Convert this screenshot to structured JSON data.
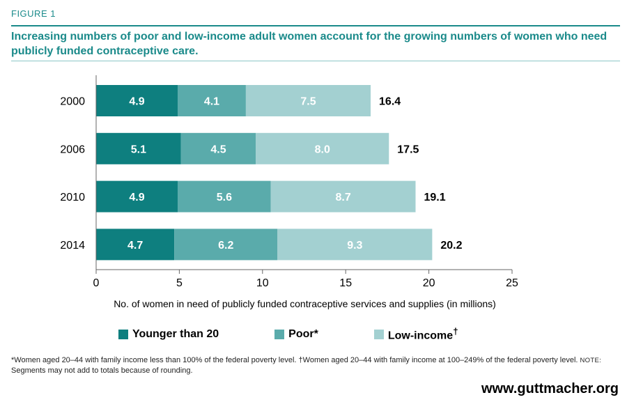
{
  "header": {
    "figure_label": "FIGURE 1",
    "title": "Increasing numbers of poor and low-income adult women account for the growing numbers of women who need publicly funded contraceptive care."
  },
  "colors": {
    "accent": "#1a8a8a",
    "younger": "#0e7f7f",
    "poor": "#5aabab",
    "low_income": "#a3d0d1"
  },
  "chart_data": {
    "type": "bar",
    "orientation": "horizontal",
    "stacked": true,
    "categories": [
      "2000",
      "2006",
      "2010",
      "2014"
    ],
    "series": [
      {
        "name": "Younger than 20",
        "values": [
          4.9,
          5.1,
          4.9,
          4.7
        ]
      },
      {
        "name": "Poor*",
        "values": [
          4.1,
          4.5,
          5.6,
          6.2
        ]
      },
      {
        "name": "Low-income†",
        "values": [
          7.5,
          8.0,
          8.7,
          9.3
        ]
      }
    ],
    "totals": [
      "16.4",
      "17.5",
      "19.1",
      "20.2"
    ],
    "segment_labels": [
      [
        "4.9",
        "4.1",
        "7.5"
      ],
      [
        "5.1",
        "4.5",
        "8.0"
      ],
      [
        "4.9",
        "5.6",
        "8.7"
      ],
      [
        "4.7",
        "6.2",
        "9.3"
      ]
    ],
    "xlabel": "No. of women in need of publicly funded contraceptive services and supplies (in millions)",
    "xlim": [
      0,
      25
    ],
    "xticks": [
      "0",
      "5",
      "10",
      "15",
      "20",
      "25"
    ],
    "grid": false,
    "legend_position": "bottom"
  },
  "legend": {
    "items": [
      {
        "label": "Younger than 20",
        "sup": ""
      },
      {
        "label": "Poor*",
        "sup": ""
      },
      {
        "label": "Low-income",
        "sup": "†"
      }
    ]
  },
  "footnote": {
    "line1": "*Women aged 20–44 with family income less than 100% of the federal poverty level. †Women aged 20–44 with family income at 100–249% of the federal poverty level. ",
    "note_label": "NOTE:",
    "note_text": " Segments may not add to totals because of rounding."
  },
  "footer": {
    "url": "www.guttmacher.org"
  }
}
